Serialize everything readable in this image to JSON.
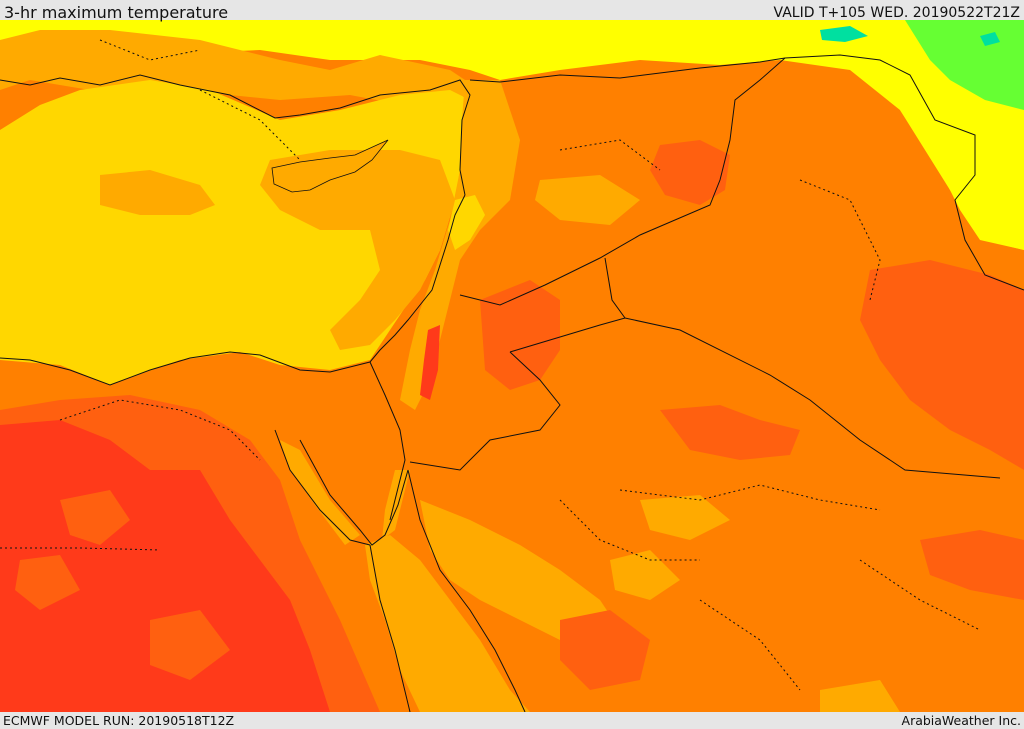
{
  "header": {
    "title": "3-hr maximum temperature",
    "valid": "VALID T+105 WED. 20190522T21Z"
  },
  "footer": {
    "model_run": "ECMWF MODEL RUN: 20190518T12Z",
    "credit": "ArabiaWeather Inc."
  },
  "map": {
    "region": "Eastern Mediterranean and Middle East",
    "colors": {
      "coolest": "#00e0a0",
      "cool": "#66ff33",
      "mild": "#ffff00",
      "sea": "#ffd700",
      "warm": "#ffaa00",
      "hot": "#ff8000",
      "hotter": "#ff6010",
      "hottest": "#ff3a1a",
      "boundary": "#111111"
    }
  }
}
